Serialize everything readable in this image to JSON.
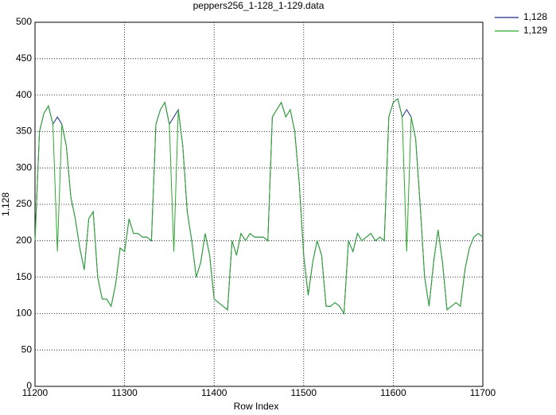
{
  "chart_data": {
    "type": "line",
    "title": "peppers256_1-128_1-129.data",
    "x_label": "Row Index",
    "y_label": "1,128",
    "xlim": [
      11200,
      11700
    ],
    "xticks": [
      11200,
      11300,
      11400,
      11500,
      11600,
      11700
    ],
    "ylim": [
      0,
      500
    ],
    "yticks": [
      0,
      50,
      100,
      150,
      200,
      250,
      300,
      350,
      400,
      450,
      500
    ],
    "grid": true,
    "legend": "outside-top-right",
    "x": [
      11200,
      11205,
      11210,
      11215,
      11220,
      11225,
      11230,
      11235,
      11240,
      11245,
      11250,
      11255,
      11260,
      11265,
      11270,
      11275,
      11280,
      11285,
      11290,
      11295,
      11300,
      11305,
      11310,
      11315,
      11320,
      11325,
      11330,
      11335,
      11340,
      11345,
      11350,
      11355,
      11360,
      11365,
      11370,
      11375,
      11380,
      11385,
      11390,
      11395,
      11400,
      11405,
      11410,
      11415,
      11420,
      11425,
      11430,
      11435,
      11440,
      11445,
      11450,
      11455,
      11460,
      11465,
      11470,
      11475,
      11480,
      11485,
      11490,
      11495,
      11500,
      11505,
      11510,
      11515,
      11520,
      11525,
      11530,
      11535,
      11540,
      11545,
      11550,
      11555,
      11560,
      11565,
      11570,
      11575,
      11580,
      11585,
      11590,
      11595,
      11600,
      11605,
      11610,
      11615,
      11620,
      11625,
      11630,
      11635,
      11640,
      11645,
      11650,
      11655,
      11660,
      11665,
      11670,
      11675,
      11680,
      11685,
      11690,
      11695,
      11700
    ],
    "series": [
      {
        "name": "1,128",
        "color": "#1a2f8a",
        "values": [
          200,
          350,
          375,
          385,
          360,
          370,
          360,
          330,
          260,
          230,
          190,
          160,
          230,
          240,
          150,
          120,
          120,
          110,
          140,
          190,
          185,
          230,
          210,
          210,
          205,
          205,
          200,
          360,
          380,
          390,
          360,
          370,
          380,
          330,
          240,
          200,
          150,
          170,
          210,
          180,
          120,
          115,
          110,
          105,
          200,
          180,
          210,
          200,
          210,
          205,
          205,
          205,
          200,
          370,
          380,
          390,
          370,
          380,
          350,
          280,
          180,
          125,
          170,
          200,
          180,
          110,
          110,
          115,
          110,
          100,
          200,
          185,
          210,
          200,
          205,
          210,
          200,
          205,
          200,
          370,
          390,
          395,
          370,
          380,
          370,
          340,
          250,
          150,
          110,
          170,
          215,
          170,
          105,
          110,
          115,
          110,
          160,
          190,
          205,
          210,
          205
        ]
      },
      {
        "name": "1,129",
        "color": "#2ea82e",
        "values": [
          200,
          350,
          375,
          385,
          360,
          185,
          360,
          330,
          260,
          230,
          190,
          160,
          230,
          240,
          150,
          120,
          120,
          110,
          140,
          190,
          185,
          230,
          210,
          210,
          205,
          205,
          200,
          360,
          380,
          390,
          360,
          185,
          380,
          330,
          240,
          200,
          150,
          170,
          210,
          180,
          120,
          115,
          110,
          105,
          200,
          180,
          210,
          200,
          210,
          205,
          205,
          205,
          200,
          370,
          380,
          390,
          370,
          380,
          350,
          280,
          180,
          125,
          170,
          200,
          180,
          110,
          110,
          115,
          110,
          100,
          200,
          185,
          210,
          200,
          205,
          210,
          200,
          205,
          200,
          370,
          390,
          395,
          370,
          185,
          370,
          340,
          250,
          150,
          110,
          170,
          215,
          170,
          105,
          110,
          115,
          110,
          160,
          190,
          205,
          210,
          205
        ]
      }
    ]
  }
}
